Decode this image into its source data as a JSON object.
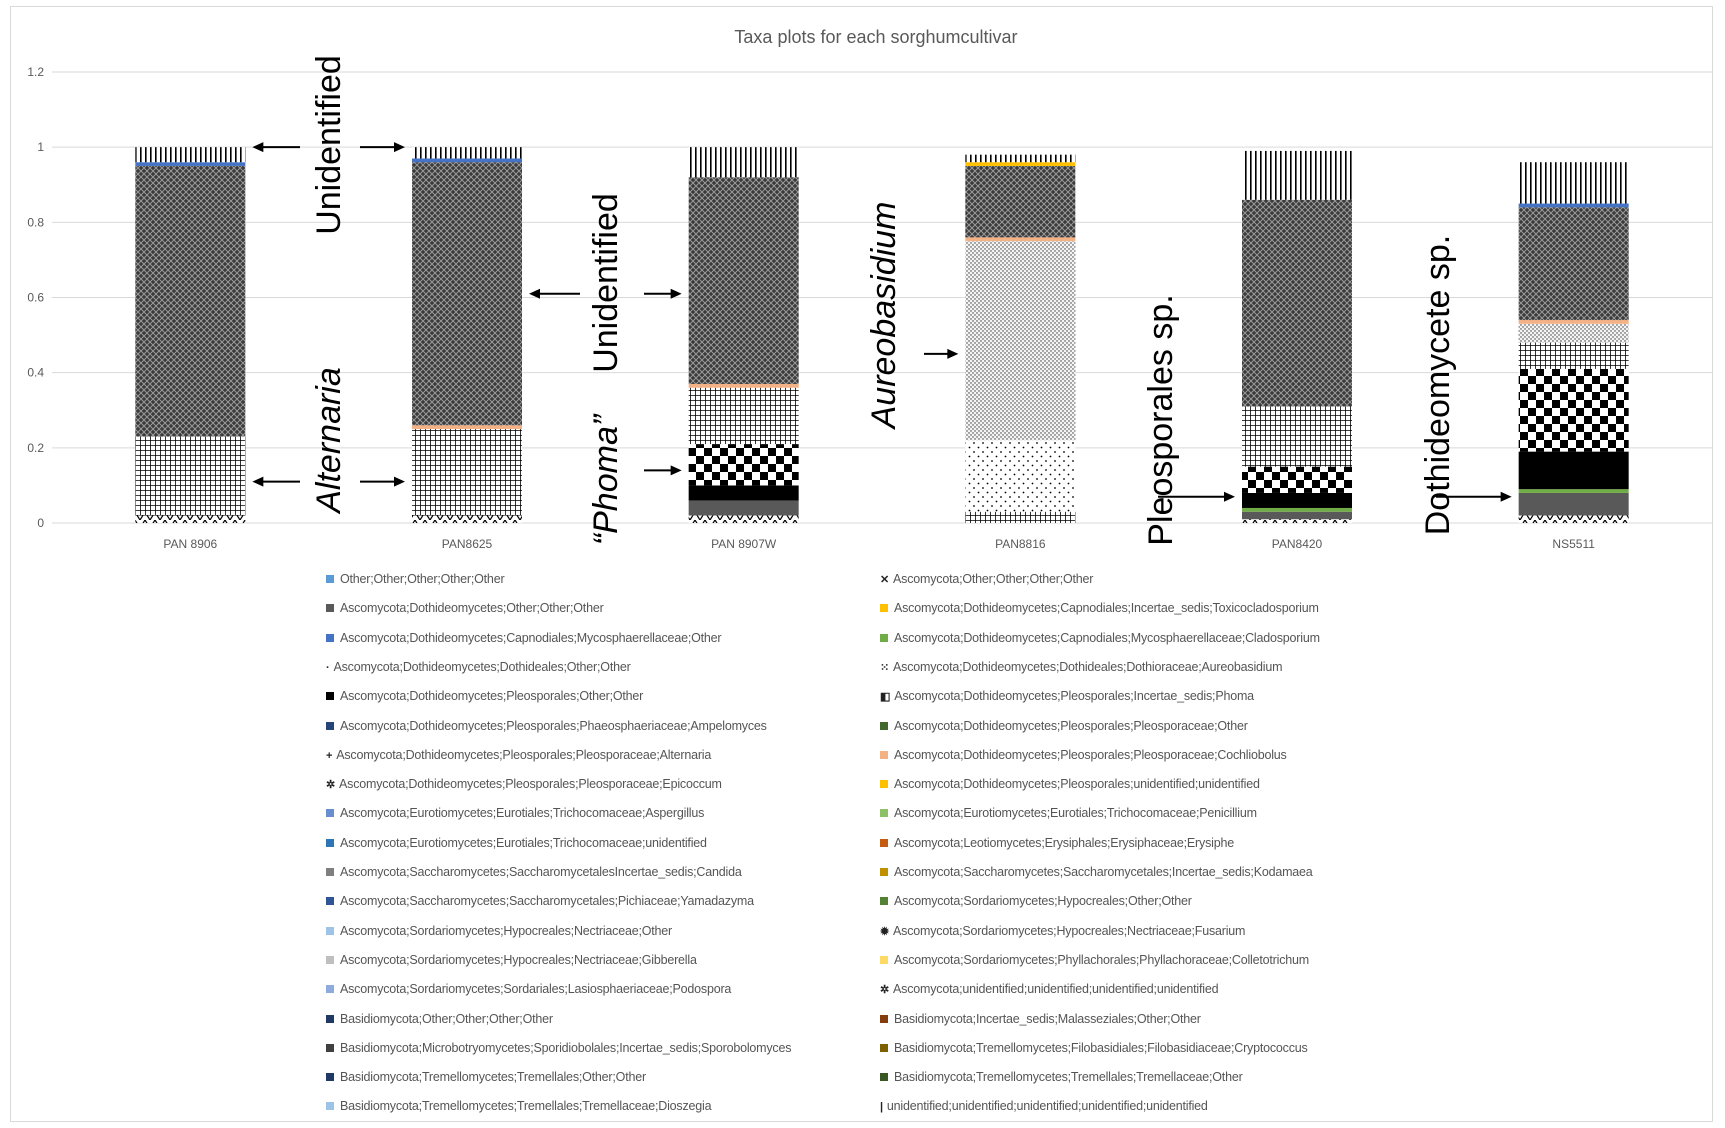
{
  "chart_data": {
    "type": "bar",
    "stacked": true,
    "title": "Taxa plots for each sorghumcultivar",
    "xlabel": "",
    "ylabel": "",
    "ylim": [
      0,
      1.2
    ],
    "yticks": [
      "0",
      "0.2",
      "0.4",
      "0.6",
      "0.8",
      "1",
      "1.2"
    ],
    "grid": true,
    "legend_position": "bottom",
    "categories": [
      "PAN 8906",
      "PAN8625",
      "PAN 8907W",
      "PAN8816",
      "PAN8420",
      "NS5511"
    ],
    "series": [
      {
        "name": "Ascomycota;Dothideomycetes;Pleosporales;Pleosporaceae;Epicoccum",
        "color": "#ffffff",
        "pattern": "zigzag",
        "values": [
          0.02,
          0.02,
          0.02,
          0.0,
          0.01,
          0.02
        ]
      },
      {
        "name": "Ascomycota;Dothideomycetes;Other;Other;Other",
        "color": "#595959",
        "pattern": "solid",
        "values": [
          0.0,
          0.0,
          0.04,
          0.0,
          0.02,
          0.06
        ]
      },
      {
        "name": "Ascomycota;Dothideomycetes;Capnodiales;Mycosphaerellaceae;Cladosporium",
        "color": "#70ad47",
        "pattern": "solid",
        "values": [
          0.0,
          0.0,
          0.0,
          0.0,
          0.01,
          0.01
        ]
      },
      {
        "name": "Ascomycota;Dothideomycetes;Pleosporales;Other;Other",
        "color": "#000000",
        "pattern": "solid",
        "values": [
          0.0,
          0.0,
          0.04,
          0.0,
          0.04,
          0.1
        ]
      },
      {
        "name": "Ascomycota;Dothideomycetes;Pleosporales;Incertae_sedis;Phoma",
        "color": "#000000",
        "pattern": "checker",
        "values": [
          0.0,
          0.0,
          0.11,
          0.0,
          0.07,
          0.22
        ]
      },
      {
        "name": "Ascomycota;Dothideomycetes;Pleosporales;Pleosporaceae;Alternaria",
        "color": "#000000",
        "pattern": "grid",
        "values": [
          0.21,
          0.23,
          0.15,
          0.03,
          0.16,
          0.07
        ]
      },
      {
        "name": "Ascomycota;Dothideomycetes;Dothideales;Other;Other",
        "color": "#000000",
        "pattern": "dots",
        "values": [
          0.0,
          0.0,
          0.0,
          0.19,
          0.0,
          0.0
        ]
      },
      {
        "name": "Ascomycota;Dothideomycetes;Dothideales;Dothioraceae;Aureobasidium",
        "color": "#000000",
        "pattern": "fine",
        "values": [
          0.0,
          0.0,
          0.0,
          0.53,
          0.0,
          0.05
        ]
      },
      {
        "name": "Ascomycota;Dothideomycetes;Pleosporales;Pleosporaceae;Cochliobolus",
        "color": "#f4b183",
        "pattern": "solid",
        "values": [
          0.0,
          0.01,
          0.01,
          0.01,
          0.0,
          0.01
        ]
      },
      {
        "name": "Ascomycota;Other;Other;Other;Other",
        "color": "#000000",
        "pattern": "cross",
        "values": [
          0.72,
          0.7,
          0.55,
          0.19,
          0.55,
          0.3
        ]
      },
      {
        "name": "Ascomycota;Dothideomycetes;Capnodiales;Mycosphaerellaceae;Other",
        "color": "#4472c4",
        "pattern": "solid",
        "values": [
          0.01,
          0.01,
          0.0,
          0.0,
          0.0,
          0.01
        ]
      },
      {
        "name": "Ascomycota;Dothideomycetes;Capnodiales;Incertae_sedis;Toxicocladosporium",
        "color": "#ffc000",
        "pattern": "solid",
        "values": [
          0.0,
          0.0,
          0.0,
          0.01,
          0.0,
          0.0
        ]
      },
      {
        "name": "unidentified;unidentified;unidentified;unidentified;unidentified",
        "color": "#000000",
        "pattern": "vlines",
        "values": [
          0.04,
          0.03,
          0.08,
          0.02,
          0.13,
          0.11
        ]
      }
    ],
    "legend": [
      {
        "label": "Other;Other;Other;Other;Other",
        "color": "#5b9bd5",
        "glyph": ""
      },
      {
        "label": "Ascomycota;Other;Other;Other;Other",
        "color": "",
        "glyph": "✕"
      },
      {
        "label": "Ascomycota;Dothideomycetes;Other;Other;Other",
        "color": "#595959",
        "glyph": ""
      },
      {
        "label": "Ascomycota;Dothideomycetes;Capnodiales;Incertae_sedis;Toxicocladosporium",
        "color": "#ffc000",
        "glyph": ""
      },
      {
        "label": "Ascomycota;Dothideomycetes;Capnodiales;Mycosphaerellaceae;Other",
        "color": "#4472c4",
        "glyph": ""
      },
      {
        "label": "Ascomycota;Dothideomycetes;Capnodiales;Mycosphaerellaceae;Cladosporium",
        "color": "#70ad47",
        "glyph": ""
      },
      {
        "label": "Ascomycota;Dothideomycetes;Dothideales;Other;Other",
        "color": "",
        "glyph": "·"
      },
      {
        "label": "Ascomycota;Dothideomycetes;Dothideales;Dothioraceae;Aureobasidium",
        "color": "",
        "glyph": "⁙"
      },
      {
        "label": "Ascomycota;Dothideomycetes;Pleosporales;Other;Other",
        "color": "#000000",
        "glyph": ""
      },
      {
        "label": "Ascomycota;Dothideomycetes;Pleosporales;Incertae_sedis;Phoma",
        "color": "",
        "glyph": "◧"
      },
      {
        "label": "Ascomycota;Dothideomycetes;Pleosporales;Phaeosphaeriaceae;Ampelomyces",
        "color": "#264478",
        "glyph": ""
      },
      {
        "label": "Ascomycota;Dothideomycetes;Pleosporales;Pleosporaceae;Other",
        "color": "#43682b",
        "glyph": ""
      },
      {
        "label": "Ascomycota;Dothideomycetes;Pleosporales;Pleosporaceae;Alternaria",
        "color": "",
        "glyph": "+"
      },
      {
        "label": "Ascomycota;Dothideomycetes;Pleosporales;Pleosporaceae;Cochliobolus",
        "color": "#f4b183",
        "glyph": ""
      },
      {
        "label": "Ascomycota;Dothideomycetes;Pleosporales;Pleosporaceae;Epicoccum",
        "color": "",
        "glyph": "✲"
      },
      {
        "label": "Ascomycota;Dothideomycetes;Pleosporales;unidentified;unidentified",
        "color": "#ffc000",
        "glyph": ""
      },
      {
        "label": "Ascomycota;Eurotiomycetes;Eurotiales;Trichocomaceae;Aspergillus",
        "color": "#698ed0",
        "glyph": ""
      },
      {
        "label": "Ascomycota;Eurotiomycetes;Eurotiales;Trichocomaceae;Penicillium",
        "color": "#8cc168",
        "glyph": ""
      },
      {
        "label": "Ascomycota;Eurotiomycetes;Eurotiales;Trichocomaceae;unidentified",
        "color": "#2e75b6",
        "glyph": ""
      },
      {
        "label": "Ascomycota;Leotiomycetes;Erysiphales;Erysiphaceae;Erysiphe",
        "color": "#c55a11",
        "glyph": ""
      },
      {
        "label": "Ascomycota;Saccharomycetes;SaccharomycetalesIncertae_sedis;Candida",
        "color": "#7f7f7f",
        "glyph": ""
      },
      {
        "label": "Ascomycota;Saccharomycetes;Saccharomycetales;Incertae_sedis;Kodamaea",
        "color": "#bf9000",
        "glyph": ""
      },
      {
        "label": "Ascomycota;Saccharomycetes;Saccharomycetales;Pichiaceae;Yamadazyma",
        "color": "#2f5597",
        "glyph": ""
      },
      {
        "label": "Ascomycota;Sordariomycetes;Hypocreales;Other;Other",
        "color": "#548235",
        "glyph": ""
      },
      {
        "label": "Ascomycota;Sordariomycetes;Hypocreales;Nectriaceae;Other",
        "color": "#9dc3e6",
        "glyph": ""
      },
      {
        "label": "Ascomycota;Sordariomycetes;Hypocreales;Nectriaceae;Fusarium",
        "color": "",
        "glyph": "✹"
      },
      {
        "label": "Ascomycota;Sordariomycetes;Hypocreales;Nectriaceae;Gibberella",
        "color": "#bfbfbf",
        "glyph": ""
      },
      {
        "label": "Ascomycota;Sordariomycetes;Phyllachorales;Phyllachoraceae;Colletotrichum",
        "color": "#ffd966",
        "glyph": ""
      },
      {
        "label": "Ascomycota;Sordariomycetes;Sordariales;Lasiosphaeriaceae;Podospora",
        "color": "#8faadc",
        "glyph": ""
      },
      {
        "label": "Ascomycota;unidentified;unidentified;unidentified;unidentified",
        "color": "",
        "glyph": "✲"
      },
      {
        "label": "Basidiomycota;Other;Other;Other;Other",
        "color": "#1f3864",
        "glyph": ""
      },
      {
        "label": "Basidiomycota;Incertae_sedis;Malasseziales;Other;Other",
        "color": "#843c0c",
        "glyph": ""
      },
      {
        "label": "Basidiomycota;Microbotryomycetes;Sporidiobolales;Incertae_sedis;Sporobolomyces",
        "color": "#404040",
        "glyph": ""
      },
      {
        "label": "Basidiomycota;Tremellomycetes;Filobasidiales;Filobasidiaceae;Cryptococcus",
        "color": "#7f6000",
        "glyph": ""
      },
      {
        "label": "Basidiomycota;Tremellomycetes;Tremellales;Other;Other",
        "color": "#203864",
        "glyph": ""
      },
      {
        "label": "Basidiomycota;Tremellomycetes;Tremellales;Tremellaceae;Other",
        "color": "#385723",
        "glyph": ""
      },
      {
        "label": "Basidiomycota;Tremellomycetes;Tremellales;Tremellaceae;Dioszegia",
        "color": "#9dc3e6",
        "glyph": ""
      },
      {
        "label": "unidentified;unidentified;unidentified;unidentified;unidentified",
        "color": "",
        "glyph": "|"
      }
    ],
    "annotations": [
      {
        "text": "Unidentified",
        "italic": false,
        "arrows": [
          "left",
          "right"
        ],
        "target_value": 1.0
      },
      {
        "text": "Alternaria",
        "italic": true,
        "arrows": [
          "left",
          "right"
        ],
        "target_value": 0.11
      },
      {
        "text": "Unidentified",
        "italic": false,
        "arrows": [
          "left",
          "right"
        ],
        "target_value": 0.61
      },
      {
        "text": "“Phoma”",
        "italic": true,
        "arrows": [
          "right"
        ],
        "target_value": 0.14
      },
      {
        "text": "Aureobasidium",
        "italic": true,
        "arrows": [
          "right"
        ],
        "target_value": 0.45
      },
      {
        "text": "Pleosporales sp.",
        "italic": false,
        "arrows": [
          "right"
        ],
        "target_value": 0.07
      },
      {
        "text": "Dothideomycete sp.",
        "italic": false,
        "arrows": [
          "right"
        ],
        "target_value": 0.07
      }
    ]
  }
}
